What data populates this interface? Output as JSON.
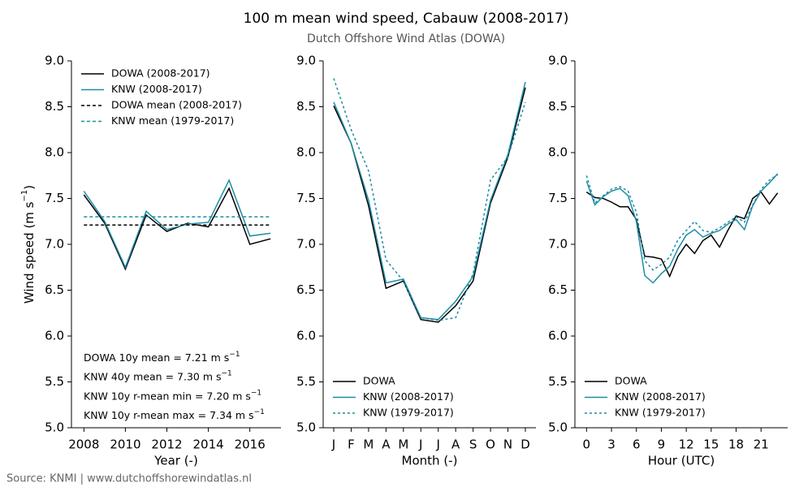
{
  "title": "100 m mean wind speed, Cabauw (2008-2017)",
  "subtitle": "Dutch Offshore Wind Atlas (DOWA)",
  "source": "Source: KNMI | www.dutchoffshorewindatlas.nl",
  "chart_data": [
    {
      "type": "line",
      "xlabel": "Year (-)",
      "ylabel": {
        "text": "Wind speed (m s",
        "sup": "−1",
        "end": ")"
      },
      "x": [
        2008,
        2009,
        2010,
        2011,
        2012,
        2013,
        2014,
        2015,
        2016,
        2017
      ],
      "xlim": [
        2007.4,
        2017.5
      ],
      "xticks": [
        2008,
        2010,
        2012,
        2014,
        2016
      ],
      "ylim": [
        5,
        9
      ],
      "yticks": [
        {
          "value": 5,
          "label": "5.0"
        },
        {
          "value": 5.5,
          "label": "5.5"
        },
        {
          "value": 6,
          "label": "6.0"
        },
        {
          "value": 6.5,
          "label": "6.5"
        },
        {
          "value": 7,
          "label": "7.0"
        },
        {
          "value": 7.5,
          "label": "7.5"
        },
        {
          "value": 8,
          "label": "8.0"
        },
        {
          "value": 8.5,
          "label": "8.5"
        },
        {
          "value": 9,
          "label": "9.0"
        }
      ],
      "legend": "upper left",
      "series": [
        {
          "name": "DOWA (2008-2017)",
          "color": "#000000",
          "dash": "solid",
          "values": [
            7.54,
            7.23,
            6.73,
            7.32,
            7.14,
            7.23,
            7.19,
            7.61,
            7.0,
            7.06
          ]
        },
        {
          "name": "KNW (2008-2017)",
          "color": "#1f8ca6",
          "dash": "solid",
          "values": [
            7.58,
            7.25,
            6.75,
            7.36,
            7.16,
            7.22,
            7.24,
            7.7,
            7.09,
            7.12
          ]
        },
        {
          "name": "DOWA mean (2008-2017)",
          "color": "#000000",
          "dash": "dashed",
          "values": [
            7.21,
            7.21,
            7.21,
            7.21,
            7.21,
            7.21,
            7.21,
            7.21,
            7.21,
            7.21
          ]
        },
        {
          "name": "KNW mean (1979-2017)",
          "color": "#1f8ca6",
          "dash": "dashed",
          "values": [
            7.3,
            7.3,
            7.3,
            7.3,
            7.3,
            7.3,
            7.3,
            7.3,
            7.3,
            7.3
          ]
        }
      ],
      "annotations": [
        {
          "text": "DOWA 10y mean =  7.21 m s",
          "sup": "−1"
        },
        {
          "text": "KNW 40y mean =  7.30 m s",
          "sup": "−1"
        },
        {
          "text": "KNW 10y r-mean min =  7.20 m s",
          "sup": "−1"
        },
        {
          "text": "KNW 10y r-mean max =  7.34 m s",
          "sup": "−1"
        }
      ]
    },
    {
      "type": "line",
      "xlabel": "Month (-)",
      "categories": [
        "J",
        "F",
        "M",
        "A",
        "M",
        "J",
        "J",
        "A",
        "S",
        "O",
        "N",
        "D"
      ],
      "ylim": [
        5,
        9
      ],
      "yticks": [
        {
          "value": 5,
          "label": "5.0"
        },
        {
          "value": 5.5,
          "label": "5.5"
        },
        {
          "value": 6,
          "label": "6.0"
        },
        {
          "value": 6.5,
          "label": "6.5"
        },
        {
          "value": 7,
          "label": "7.0"
        },
        {
          "value": 7.5,
          "label": "7.5"
        },
        {
          "value": 8,
          "label": "8.0"
        },
        {
          "value": 8.5,
          "label": "8.5"
        },
        {
          "value": 9,
          "label": "9.0"
        }
      ],
      "legend": "lower left",
      "series": [
        {
          "name": "DOWA",
          "color": "#000000",
          "dash": "solid",
          "values": [
            8.51,
            8.1,
            7.42,
            6.52,
            6.6,
            6.18,
            6.15,
            6.33,
            6.6,
            7.45,
            7.95,
            8.71
          ]
        },
        {
          "name": "KNW (2008-2017)",
          "color": "#1f8ca6",
          "dash": "solid",
          "values": [
            8.55,
            8.1,
            7.48,
            6.58,
            6.62,
            6.2,
            6.18,
            6.38,
            6.65,
            7.48,
            7.98,
            8.77
          ]
        },
        {
          "name": "KNW (1979-2017)",
          "color": "#1f8ca6",
          "dash": "dotted",
          "values": [
            8.81,
            8.25,
            7.8,
            6.83,
            6.6,
            6.2,
            6.17,
            6.2,
            6.68,
            7.7,
            7.95,
            8.55
          ]
        }
      ]
    },
    {
      "type": "line",
      "xlabel": "Hour (UTC)",
      "x": [
        0,
        1,
        2,
        3,
        4,
        5,
        6,
        7,
        8,
        9,
        10,
        11,
        12,
        13,
        14,
        15,
        16,
        17,
        18,
        19,
        20,
        21,
        22,
        23
      ],
      "xlim": [
        -1.4,
        24.2
      ],
      "xticks": [
        0,
        3,
        6,
        9,
        12,
        15,
        18,
        21
      ],
      "ylim": [
        5,
        9
      ],
      "yticks": [
        {
          "value": 5,
          "label": "5.0"
        },
        {
          "value": 5.5,
          "label": "5.5"
        },
        {
          "value": 6,
          "label": "6.0"
        },
        {
          "value": 6.5,
          "label": "6.5"
        },
        {
          "value": 7,
          "label": "7.0"
        },
        {
          "value": 7.5,
          "label": "7.5"
        },
        {
          "value": 8,
          "label": "8.0"
        },
        {
          "value": 8.5,
          "label": "8.5"
        },
        {
          "value": 9,
          "label": "9.0"
        }
      ],
      "legend": "lower left",
      "series": [
        {
          "name": "DOWA",
          "color": "#000000",
          "dash": "solid",
          "values": [
            7.57,
            7.51,
            7.5,
            7.46,
            7.41,
            7.41,
            7.27,
            6.87,
            6.86,
            6.84,
            6.65,
            6.87,
            7.0,
            6.9,
            7.04,
            7.1,
            6.97,
            7.15,
            7.31,
            7.28,
            7.5,
            7.57,
            7.44,
            7.56
          ]
        },
        {
          "name": "KNW (2008-2017)",
          "color": "#1f8ca6",
          "dash": "solid",
          "values": [
            7.69,
            7.43,
            7.52,
            7.58,
            7.61,
            7.53,
            7.25,
            6.66,
            6.58,
            6.68,
            6.76,
            6.95,
            7.1,
            7.16,
            7.08,
            7.12,
            7.15,
            7.22,
            7.27,
            7.16,
            7.42,
            7.58,
            7.67,
            7.77
          ]
        },
        {
          "name": "KNW (1979-2017)",
          "color": "#1f8ca6",
          "dash": "dotted",
          "values": [
            7.75,
            7.45,
            7.53,
            7.6,
            7.63,
            7.58,
            7.35,
            6.82,
            6.72,
            6.78,
            6.86,
            7.05,
            7.15,
            7.25,
            7.15,
            7.13,
            7.18,
            7.24,
            7.3,
            7.24,
            7.43,
            7.6,
            7.7,
            7.76
          ]
        }
      ]
    }
  ]
}
